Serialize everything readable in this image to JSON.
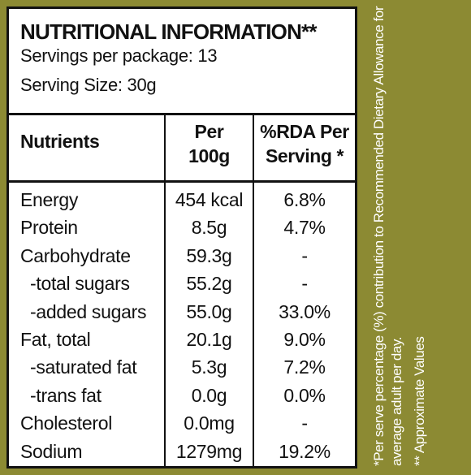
{
  "panel": {
    "title": "NUTRITIONAL INFORMATION**",
    "servings_per_package": "Servings per package: 13",
    "serving_size": "Serving Size: 30g"
  },
  "table": {
    "headers": {
      "nutrients": "Nutrients",
      "per_100g_line1": "Per",
      "per_100g_line2": "100g",
      "rda_line1": "%RDA Per",
      "rda_line2": "Serving *"
    },
    "rows": [
      {
        "name": "Energy",
        "per_100g": "454 kcal",
        "rda": "6.8%"
      },
      {
        "name": "Protein",
        "per_100g": "8.5g",
        "rda": "4.7%"
      },
      {
        "name": "Carbohydrate",
        "per_100g": "59.3g",
        "rda": "-"
      },
      {
        "name": "-total sugars",
        "per_100g": "55.2g",
        "rda": "-"
      },
      {
        "name": "-added sugars",
        "per_100g": "55.0g",
        "rda": "33.0%"
      },
      {
        "name": "Fat, total",
        "per_100g": "20.1g",
        "rda": "9.0%"
      },
      {
        "name": "-saturated fat",
        "per_100g": "5.3g",
        "rda": "7.2%"
      },
      {
        "name": "-trans fat",
        "per_100g": "0.0g",
        "rda": "0.0%"
      },
      {
        "name": "Cholesterol",
        "per_100g": "0.0mg",
        "rda": "-"
      },
      {
        "name": "Sodium",
        "per_100g": "1279mg",
        "rda": "19.2%"
      }
    ]
  },
  "side_notes": {
    "rda_line1": "*Per serve percentage (%) contribution to Recommended  Dietary Allowance for",
    "rda_line2": "average adult per day.",
    "approx": "** Approximate Values"
  },
  "colors": {
    "background": "#8c8a33",
    "panel": "#ffffff",
    "text": "#111111",
    "side_text": "#ffffff"
  }
}
